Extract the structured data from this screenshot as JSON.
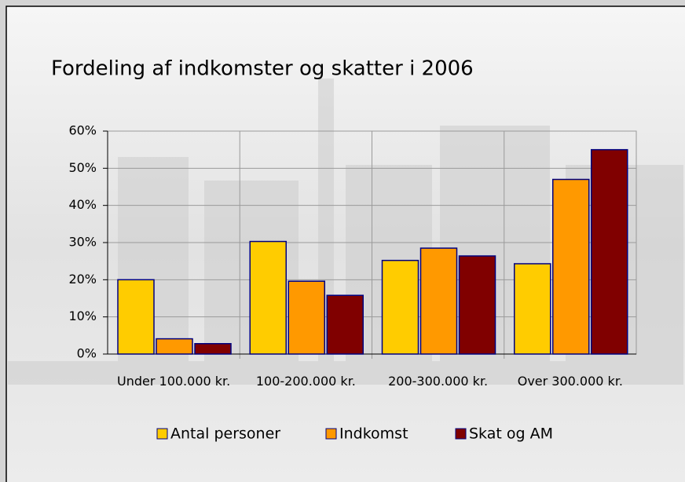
{
  "chart_data": {
    "type": "bar",
    "title": "Fordeling af indkomster og skatter i 2006",
    "categories": [
      "Under 100.000 kr.",
      "100-200.000 kr.",
      "200-300.000 kr.",
      "Over 300.000 kr."
    ],
    "series": [
      {
        "name": "Antal personer",
        "color": "#ffcc00",
        "values": [
          20,
          30.3,
          25.2,
          24.3
        ]
      },
      {
        "name": "Indkomst",
        "color": "#ff9900",
        "values": [
          4.1,
          19.6,
          28.5,
          47
        ]
      },
      {
        "name": "Skat og AM",
        "color": "#800000",
        "values": [
          2.8,
          15.8,
          26.4,
          55
        ]
      }
    ],
    "ylim": [
      0,
      60
    ],
    "yticks": [
      {
        "value": 0,
        "label": "0%"
      },
      {
        "value": 10,
        "label": "10%"
      },
      {
        "value": 20,
        "label": "20%"
      },
      {
        "value": 30,
        "label": "30%"
      },
      {
        "value": 40,
        "label": "40%"
      },
      {
        "value": 50,
        "label": "50%"
      },
      {
        "value": 60,
        "label": "60%"
      }
    ],
    "grid": true,
    "legend": "bottom"
  }
}
